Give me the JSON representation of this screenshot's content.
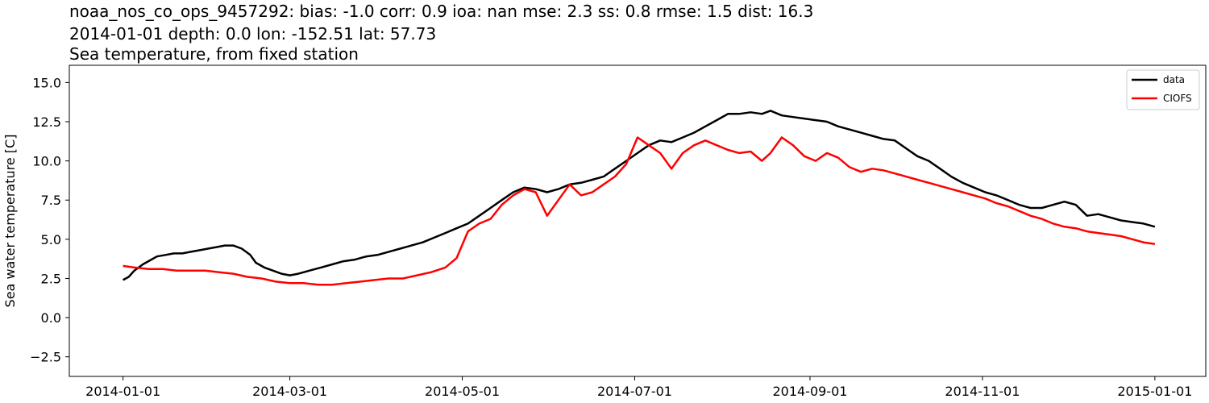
{
  "title": {
    "line1": "noaa_nos_co_ops_9457292: bias: -1.0  corr: 0.9  ioa: nan  mse: 2.3  ss: 0.8  rmse: 1.5  dist: 16.3",
    "line2": "2014-01-01 depth: 0.0 lon: -152.51 lat: 57.73",
    "line3": "Sea temperature, from fixed station"
  },
  "chart_data": {
    "type": "line",
    "ylabel": "Sea water temperature [C]",
    "xlabel": "",
    "xlim": [
      "2013-12-13",
      "2015-01-19"
    ],
    "ylim": [
      -3.75,
      16.1
    ],
    "x_ticks": [
      "2014-01",
      "2014-03",
      "2014-05",
      "2014-07",
      "2014-09",
      "2014-11",
      "2015-01"
    ],
    "y_ticks": [
      -2.5,
      0.0,
      2.5,
      5.0,
      7.5,
      10.0,
      12.5,
      15.0
    ],
    "y_tick_labels": [
      "−2.5",
      "0.0",
      "2.5",
      "5.0",
      "7.5",
      "10.0",
      "12.5",
      "15.0"
    ],
    "legend": {
      "position": "upper right",
      "entries": [
        "data",
        "CIOFS"
      ]
    },
    "grid": false,
    "series": [
      {
        "name": "data",
        "color": "#000000",
        "points": [
          [
            "2014-01-01",
            2.4
          ],
          [
            "2014-01-03",
            2.6
          ],
          [
            "2014-01-05",
            3.0
          ],
          [
            "2014-01-08",
            3.4
          ],
          [
            "2014-01-10",
            3.6
          ],
          [
            "2014-01-13",
            3.9
          ],
          [
            "2014-01-16",
            4.0
          ],
          [
            "2014-01-19",
            4.1
          ],
          [
            "2014-01-22",
            4.1
          ],
          [
            "2014-01-25",
            4.2
          ],
          [
            "2014-01-28",
            4.3
          ],
          [
            "2014-01-31",
            4.4
          ],
          [
            "2014-02-03",
            4.5
          ],
          [
            "2014-02-06",
            4.6
          ],
          [
            "2014-02-09",
            4.6
          ],
          [
            "2014-02-12",
            4.4
          ],
          [
            "2014-02-15",
            4.0
          ],
          [
            "2014-02-17",
            3.5
          ],
          [
            "2014-02-20",
            3.2
          ],
          [
            "2014-02-23",
            3.0
          ],
          [
            "2014-02-26",
            2.8
          ],
          [
            "2014-03-01",
            2.7
          ],
          [
            "2014-03-04",
            2.8
          ],
          [
            "2014-03-08",
            3.0
          ],
          [
            "2014-03-12",
            3.2
          ],
          [
            "2014-03-16",
            3.4
          ],
          [
            "2014-03-20",
            3.6
          ],
          [
            "2014-03-24",
            3.7
          ],
          [
            "2014-03-28",
            3.9
          ],
          [
            "2014-04-01",
            4.0
          ],
          [
            "2014-04-05",
            4.2
          ],
          [
            "2014-04-09",
            4.4
          ],
          [
            "2014-04-13",
            4.6
          ],
          [
            "2014-04-17",
            4.8
          ],
          [
            "2014-04-21",
            5.1
          ],
          [
            "2014-04-25",
            5.4
          ],
          [
            "2014-04-29",
            5.7
          ],
          [
            "2014-05-03",
            6.0
          ],
          [
            "2014-05-07",
            6.5
          ],
          [
            "2014-05-11",
            7.0
          ],
          [
            "2014-05-15",
            7.5
          ],
          [
            "2014-05-19",
            8.0
          ],
          [
            "2014-05-23",
            8.3
          ],
          [
            "2014-05-27",
            8.2
          ],
          [
            "2014-05-31",
            8.0
          ],
          [
            "2014-06-04",
            8.2
          ],
          [
            "2014-06-08",
            8.5
          ],
          [
            "2014-06-12",
            8.6
          ],
          [
            "2014-06-16",
            8.8
          ],
          [
            "2014-06-20",
            9.0
          ],
          [
            "2014-06-24",
            9.5
          ],
          [
            "2014-06-28",
            10.0
          ],
          [
            "2014-07-02",
            10.5
          ],
          [
            "2014-07-06",
            11.0
          ],
          [
            "2014-07-10",
            11.3
          ],
          [
            "2014-07-14",
            11.2
          ],
          [
            "2014-07-18",
            11.5
          ],
          [
            "2014-07-22",
            11.8
          ],
          [
            "2014-07-26",
            12.2
          ],
          [
            "2014-07-30",
            12.6
          ],
          [
            "2014-08-03",
            13.0
          ],
          [
            "2014-08-07",
            13.0
          ],
          [
            "2014-08-11",
            13.1
          ],
          [
            "2014-08-15",
            13.0
          ],
          [
            "2014-08-18",
            13.2
          ],
          [
            "2014-08-22",
            12.9
          ],
          [
            "2014-08-26",
            12.8
          ],
          [
            "2014-08-30",
            12.7
          ],
          [
            "2014-09-03",
            12.6
          ],
          [
            "2014-09-07",
            12.5
          ],
          [
            "2014-09-11",
            12.2
          ],
          [
            "2014-09-15",
            12.0
          ],
          [
            "2014-09-19",
            11.8
          ],
          [
            "2014-09-23",
            11.6
          ],
          [
            "2014-09-27",
            11.4
          ],
          [
            "2014-10-01",
            11.3
          ],
          [
            "2014-10-05",
            10.8
          ],
          [
            "2014-10-09",
            10.3
          ],
          [
            "2014-10-13",
            10.0
          ],
          [
            "2014-10-17",
            9.5
          ],
          [
            "2014-10-21",
            9.0
          ],
          [
            "2014-10-25",
            8.6
          ],
          [
            "2014-10-29",
            8.3
          ],
          [
            "2014-11-02",
            8.0
          ],
          [
            "2014-11-06",
            7.8
          ],
          [
            "2014-11-10",
            7.5
          ],
          [
            "2014-11-14",
            7.2
          ],
          [
            "2014-11-18",
            7.0
          ],
          [
            "2014-11-22",
            7.0
          ],
          [
            "2014-11-26",
            7.2
          ],
          [
            "2014-11-30",
            7.4
          ],
          [
            "2014-12-04",
            7.2
          ],
          [
            "2014-12-08",
            6.5
          ],
          [
            "2014-12-12",
            6.6
          ],
          [
            "2014-12-16",
            6.4
          ],
          [
            "2014-12-20",
            6.2
          ],
          [
            "2014-12-24",
            6.1
          ],
          [
            "2014-12-28",
            6.0
          ],
          [
            "2015-01-01",
            5.8
          ]
        ]
      },
      {
        "name": "CIOFS",
        "color": "#ff0000",
        "points": [
          [
            "2014-01-01",
            3.3
          ],
          [
            "2014-01-05",
            3.2
          ],
          [
            "2014-01-10",
            3.1
          ],
          [
            "2014-01-15",
            3.1
          ],
          [
            "2014-01-20",
            3.0
          ],
          [
            "2014-01-25",
            3.0
          ],
          [
            "2014-01-30",
            3.0
          ],
          [
            "2014-02-04",
            2.9
          ],
          [
            "2014-02-09",
            2.8
          ],
          [
            "2014-02-14",
            2.6
          ],
          [
            "2014-02-19",
            2.5
          ],
          [
            "2014-02-24",
            2.3
          ],
          [
            "2014-03-01",
            2.2
          ],
          [
            "2014-03-06",
            2.2
          ],
          [
            "2014-03-11",
            2.1
          ],
          [
            "2014-03-16",
            2.1
          ],
          [
            "2014-03-21",
            2.2
          ],
          [
            "2014-03-26",
            2.3
          ],
          [
            "2014-03-31",
            2.4
          ],
          [
            "2014-04-05",
            2.5
          ],
          [
            "2014-04-10",
            2.5
          ],
          [
            "2014-04-15",
            2.7
          ],
          [
            "2014-04-20",
            2.9
          ],
          [
            "2014-04-25",
            3.2
          ],
          [
            "2014-04-29",
            3.8
          ],
          [
            "2014-05-03",
            5.5
          ],
          [
            "2014-05-07",
            6.0
          ],
          [
            "2014-05-11",
            6.3
          ],
          [
            "2014-05-15",
            7.2
          ],
          [
            "2014-05-19",
            7.8
          ],
          [
            "2014-05-23",
            8.2
          ],
          [
            "2014-05-27",
            8.0
          ],
          [
            "2014-05-31",
            6.5
          ],
          [
            "2014-06-04",
            7.5
          ],
          [
            "2014-06-08",
            8.5
          ],
          [
            "2014-06-12",
            7.8
          ],
          [
            "2014-06-16",
            8.0
          ],
          [
            "2014-06-20",
            8.5
          ],
          [
            "2014-06-24",
            9.0
          ],
          [
            "2014-06-28",
            9.8
          ],
          [
            "2014-07-02",
            11.5
          ],
          [
            "2014-07-06",
            11.0
          ],
          [
            "2014-07-10",
            10.5
          ],
          [
            "2014-07-14",
            9.5
          ],
          [
            "2014-07-18",
            10.5
          ],
          [
            "2014-07-22",
            11.0
          ],
          [
            "2014-07-26",
            11.3
          ],
          [
            "2014-07-30",
            11.0
          ],
          [
            "2014-08-03",
            10.7
          ],
          [
            "2014-08-07",
            10.5
          ],
          [
            "2014-08-11",
            10.6
          ],
          [
            "2014-08-15",
            10.0
          ],
          [
            "2014-08-18",
            10.5
          ],
          [
            "2014-08-22",
            11.5
          ],
          [
            "2014-08-26",
            11.0
          ],
          [
            "2014-08-30",
            10.3
          ],
          [
            "2014-09-03",
            10.0
          ],
          [
            "2014-09-07",
            10.5
          ],
          [
            "2014-09-11",
            10.2
          ],
          [
            "2014-09-15",
            9.6
          ],
          [
            "2014-09-19",
            9.3
          ],
          [
            "2014-09-23",
            9.5
          ],
          [
            "2014-09-27",
            9.4
          ],
          [
            "2014-10-01",
            9.2
          ],
          [
            "2014-10-05",
            9.0
          ],
          [
            "2014-10-09",
            8.8
          ],
          [
            "2014-10-13",
            8.6
          ],
          [
            "2014-10-17",
            8.4
          ],
          [
            "2014-10-21",
            8.2
          ],
          [
            "2014-10-25",
            8.0
          ],
          [
            "2014-10-29",
            7.8
          ],
          [
            "2014-11-02",
            7.6
          ],
          [
            "2014-11-06",
            7.3
          ],
          [
            "2014-11-10",
            7.1
          ],
          [
            "2014-11-14",
            6.8
          ],
          [
            "2014-11-18",
            6.5
          ],
          [
            "2014-11-22",
            6.3
          ],
          [
            "2014-11-26",
            6.0
          ],
          [
            "2014-11-30",
            5.8
          ],
          [
            "2014-12-04",
            5.7
          ],
          [
            "2014-12-08",
            5.5
          ],
          [
            "2014-12-12",
            5.4
          ],
          [
            "2014-12-16",
            5.3
          ],
          [
            "2014-12-20",
            5.2
          ],
          [
            "2014-12-24",
            5.0
          ],
          [
            "2014-12-28",
            4.8
          ],
          [
            "2015-01-01",
            4.7
          ]
        ]
      }
    ]
  }
}
